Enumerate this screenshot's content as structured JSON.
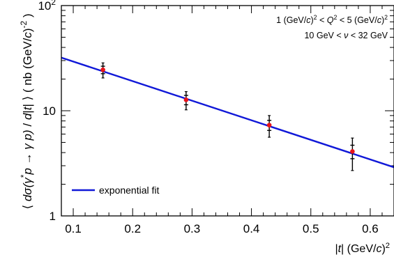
{
  "chart_data": {
    "type": "scatter",
    "title": "",
    "xlabel": "|t| (GeV/c)²",
    "ylabel": "⟨dσ(γ*p → γ p)/d|t|⟩ ( nb (GeV/c)⁻² )",
    "xlim": [
      0.08,
      0.64
    ],
    "ylim": [
      1,
      100
    ],
    "yscale": "log",
    "grid": false,
    "legend_position": "bottom-left",
    "x_ticks": [
      0.1,
      0.2,
      0.3,
      0.4,
      0.5,
      0.6
    ],
    "x_tick_labels": [
      "0.1",
      "0.2",
      "0.3",
      "0.4",
      "0.5",
      "0.6"
    ],
    "y_ticks": [
      1,
      10,
      100
    ],
    "y_tick_labels": [
      "1",
      "10",
      "10²"
    ],
    "series": [
      {
        "kind": "points",
        "color": "#e8141a",
        "x": [
          0.15,
          0.29,
          0.43,
          0.57
        ],
        "values": [
          24.5,
          12.7,
          7.3,
          4.1
        ],
        "err_stat": [
          2.0,
          1.3,
          0.8,
          0.6
        ],
        "err_total": [
          4.0,
          2.5,
          1.7,
          1.4
        ]
      },
      {
        "name": "exponential fit",
        "kind": "line",
        "color": "#1018d8",
        "x": [
          0.08,
          0.64
        ],
        "values": [
          32.0,
          2.9
        ]
      }
    ],
    "annotations": [
      "1 (GeV/c)² < Q² < 5 (GeV/c)²",
      "10 GeV < ν < 32 GeV"
    ],
    "legend": [
      "exponential fit"
    ]
  }
}
